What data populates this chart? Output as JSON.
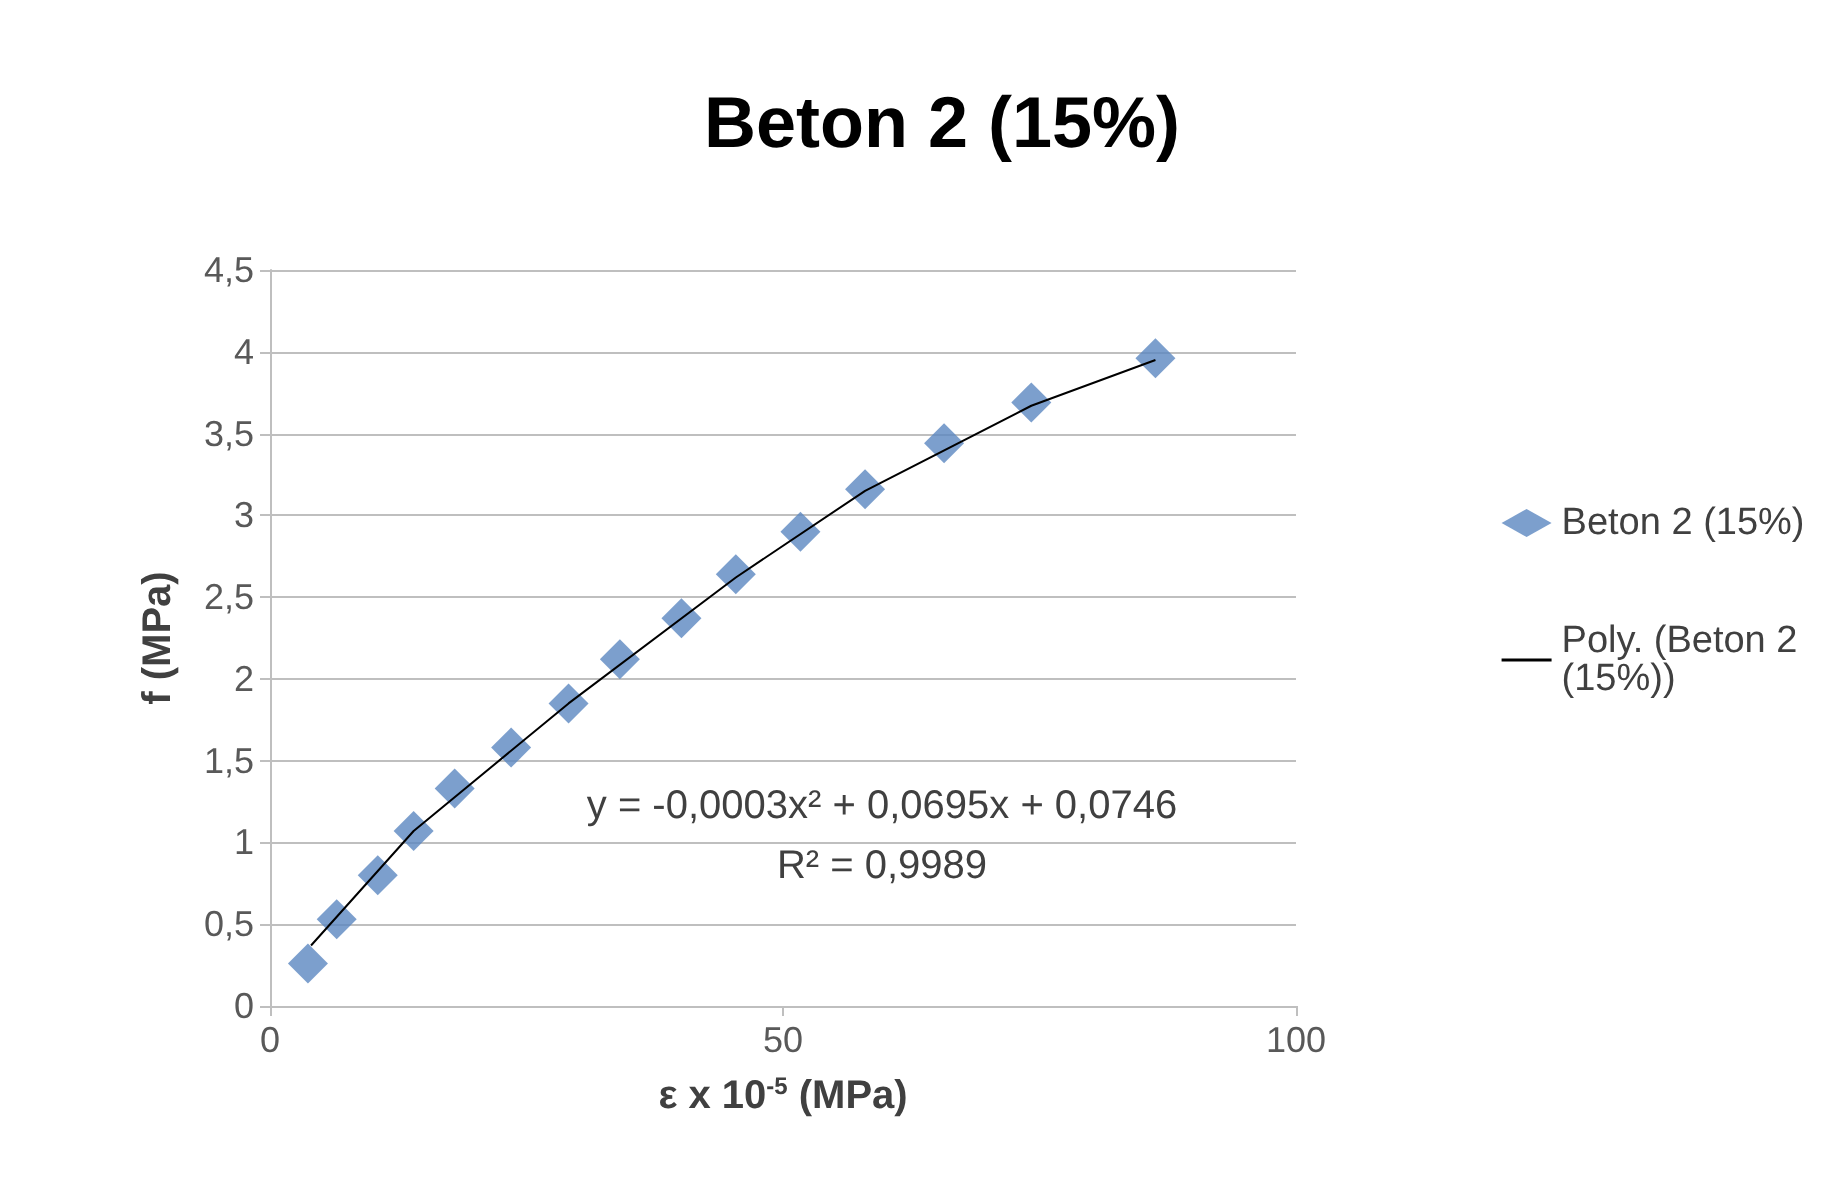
{
  "chart_data": {
    "type": "scatter",
    "title": "Beton 2 (15%)",
    "xlabel": "ε x 10$^{-5}$ (MPa)",
    "ylabel": "f (MPa)",
    "annotations": [
      "y = -0,0003x² + 0,0695x + 0,0746",
      "R² = 0,9989"
    ],
    "xlim": [
      0,
      100
    ],
    "xticks": [
      0,
      50,
      100
    ],
    "ylim": [
      0,
      4.5
    ],
    "yticks": [
      0,
      {
        "value": 0.5,
        "label": "0,5"
      },
      1,
      {
        "value": 1.5,
        "label": "1,5"
      },
      2,
      {
        "value": 2.5,
        "label": "2,5"
      },
      3,
      {
        "value": 3.5,
        "label": "3,5"
      },
      4,
      {
        "value": 4.5,
        "label": "4,5"
      }
    ],
    "grid": "y",
    "legend": "right",
    "marker": "diamond",
    "series": [
      {
        "name": "Beton 2 (15%)",
        "color": "#5b87c0",
        "x": [
          3.7,
          6.5,
          10.5,
          14.0,
          18.0,
          23.5,
          29.1,
          34.1,
          40.1,
          45.4,
          51.7,
          58.0,
          65.7,
          74.2,
          86.3
        ],
        "values": [
          0.26,
          0.53,
          0.8,
          1.07,
          1.33,
          1.58,
          1.85,
          2.12,
          2.37,
          2.64,
          2.9,
          3.16,
          3.44,
          3.69,
          3.96
        ]
      },
      {
        "name": "Poly. (Beton 2 (15%))",
        "type": "line",
        "color": "#000000",
        "marker": "none",
        "x": [
          4.0,
          14.0,
          29.1,
          45.4,
          58.0,
          74.2,
          86.3
        ],
        "values": [
          0.37,
          1.07,
          1.85,
          2.62,
          3.15,
          3.67,
          3.95
        ]
      }
    ]
  }
}
